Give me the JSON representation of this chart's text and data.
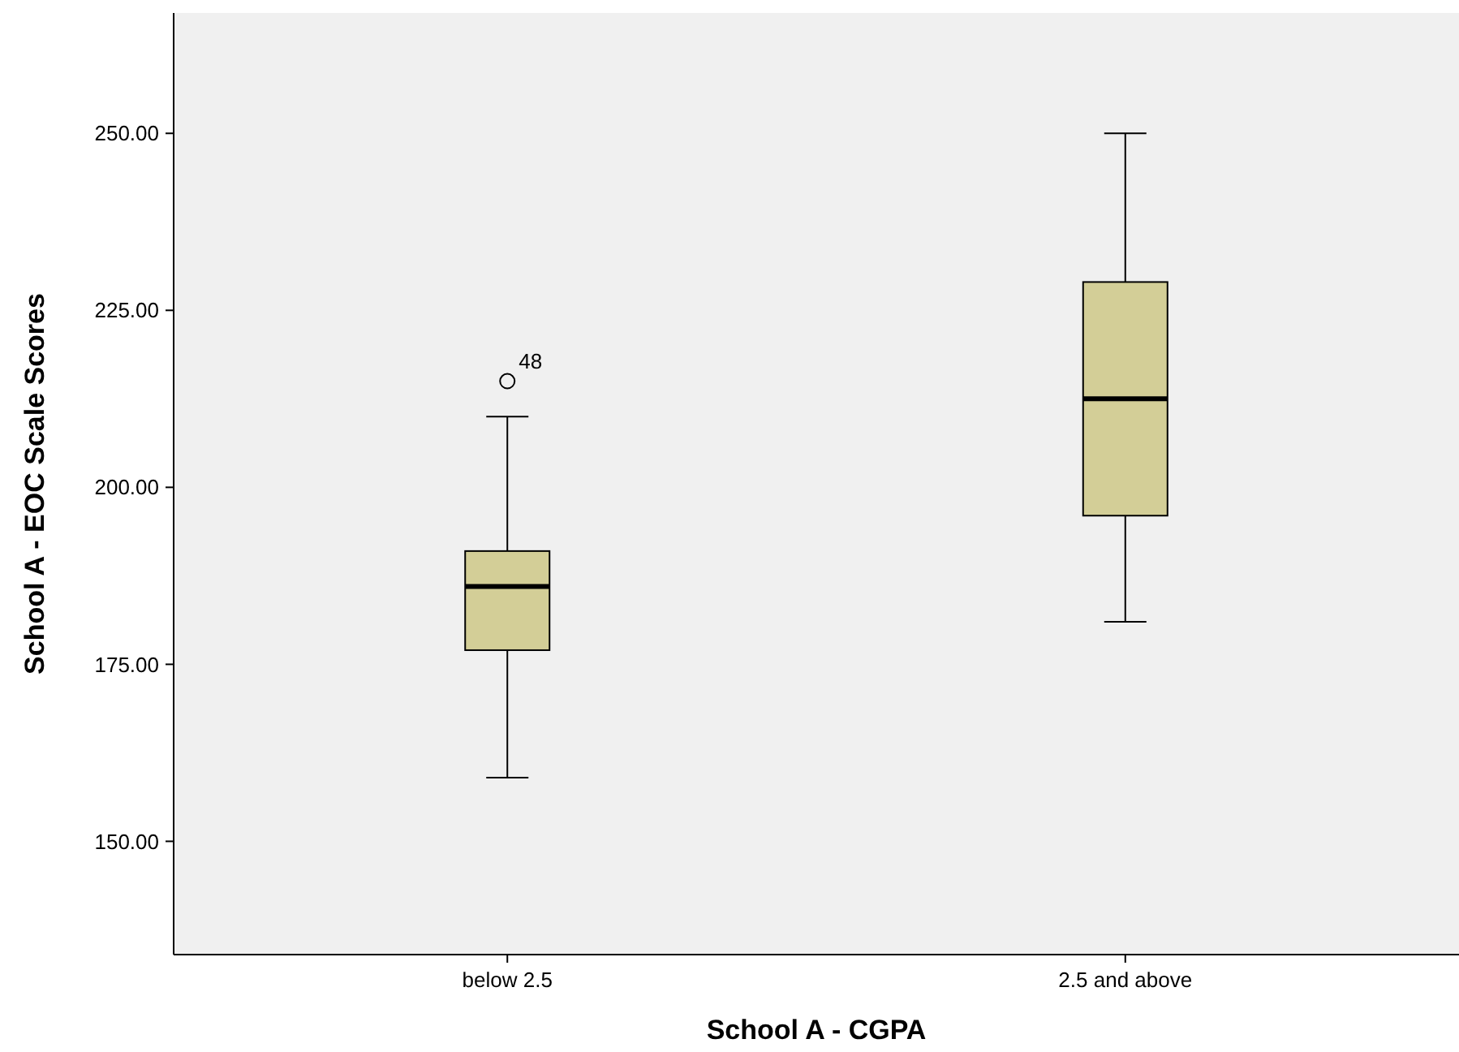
{
  "chart_data": {
    "type": "box",
    "xlabel": "School A - CGPA",
    "ylabel": "School A - EOC Scale Scores",
    "categories": [
      "below 2.5",
      "2.5 and above"
    ],
    "color": "#d3ce97",
    "boxes": [
      {
        "low": 159,
        "q1": 177,
        "median": 186,
        "q3": 191,
        "high": 210,
        "outliers": [
          215
        ]
      },
      {
        "low": 181,
        "q1": 196,
        "median": 212.5,
        "q3": 229,
        "high": 250
      }
    ],
    "ylim": [
      134,
      267
    ],
    "yticks": [
      {
        "value": 150,
        "label": "150.00"
      },
      {
        "value": 175,
        "label": "175.00"
      },
      {
        "value": 200,
        "label": "200.00"
      },
      {
        "value": 225,
        "label": "225.00"
      },
      {
        "value": 250,
        "label": "250.00"
      }
    ],
    "annotations": [
      "48"
    ],
    "grid": false
  }
}
